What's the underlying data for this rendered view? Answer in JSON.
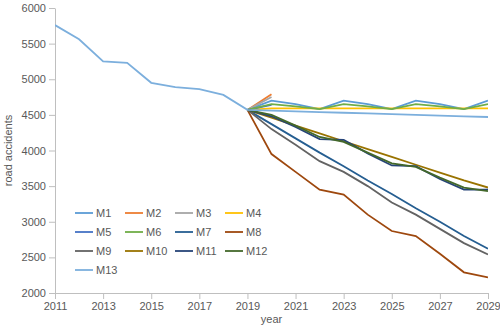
{
  "chart_data": {
    "type": "line",
    "x_label": "year",
    "y_label": "road accidents",
    "x": [
      2011,
      2012,
      2013,
      2014,
      2015,
      2016,
      2017,
      2018,
      2019,
      2020,
      2021,
      2022,
      2023,
      2024,
      2025,
      2026,
      2027,
      2028,
      2029
    ],
    "xlim": [
      2011,
      2029
    ],
    "xticks": [
      2011,
      2013,
      2015,
      2017,
      2019,
      2021,
      2023,
      2025,
      2027,
      2029
    ],
    "ylim": [
      2000,
      6000
    ],
    "yticks": [
      2000,
      2500,
      3000,
      3500,
      4000,
      4500,
      5000,
      5500,
      6000
    ],
    "grid": false,
    "legend": "lower left",
    "series": [
      {
        "name": "M1",
        "color": "#5b9bd5",
        "values": [
          null,
          null,
          null,
          null,
          null,
          null,
          null,
          null,
          4570,
          4700,
          4650,
          4580,
          4700,
          4650,
          4580,
          4700,
          4650,
          4580,
          4700
        ]
      },
      {
        "name": "M2",
        "color": "#ed7d31",
        "values": [
          null,
          null,
          null,
          null,
          null,
          null,
          null,
          null,
          4570,
          4790,
          null,
          null,
          null,
          null,
          null,
          null,
          null,
          null,
          null
        ]
      },
      {
        "name": "M3",
        "color": "#a5a5a5",
        "values": [
          null,
          null,
          null,
          null,
          null,
          null,
          null,
          null,
          4570,
          4750,
          null,
          null,
          null,
          null,
          null,
          null,
          null,
          null,
          null
        ]
      },
      {
        "name": "M4",
        "color": "#ffc000",
        "values": [
          null,
          null,
          null,
          null,
          null,
          null,
          null,
          null,
          4570,
          4590,
          4590,
          4590,
          4590,
          4590,
          4590,
          4590,
          4590,
          4590,
          4590
        ]
      },
      {
        "name": "M5",
        "color": "#4472c4",
        "values": [
          null,
          null,
          null,
          null,
          null,
          null,
          null,
          null,
          4570,
          4640,
          null,
          null,
          null,
          null,
          null,
          null,
          null,
          null,
          null
        ]
      },
      {
        "name": "M6",
        "color": "#70ad47",
        "values": [
          null,
          null,
          null,
          null,
          null,
          null,
          null,
          null,
          4570,
          4650,
          4620,
          4580,
          4650,
          4620,
          4580,
          4650,
          4620,
          4580,
          4650
        ]
      },
      {
        "name": "M7",
        "color": "#255e91",
        "values": [
          null,
          null,
          null,
          null,
          null,
          null,
          null,
          null,
          4570,
          4370,
          4170,
          3970,
          3780,
          3580,
          3390,
          3190,
          3000,
          2800,
          2620
        ]
      },
      {
        "name": "M8",
        "color": "#9e480e",
        "values": [
          null,
          null,
          null,
          null,
          null,
          null,
          null,
          null,
          4570,
          3950,
          3700,
          3450,
          3380,
          3100,
          2870,
          2800,
          2550,
          2290,
          2220
        ]
      },
      {
        "name": "M9",
        "color": "#636363",
        "values": [
          null,
          null,
          null,
          null,
          null,
          null,
          null,
          null,
          4570,
          4300,
          4080,
          3850,
          3700,
          3500,
          3270,
          3100,
          2900,
          2700,
          2540
        ]
      },
      {
        "name": "M10",
        "color": "#997300",
        "values": [
          null,
          null,
          null,
          null,
          null,
          null,
          null,
          null,
          4570,
          4460,
          4350,
          4240,
          4130,
          4020,
          3910,
          3800,
          3690,
          3580,
          3480
        ]
      },
      {
        "name": "M11",
        "color": "#264478",
        "values": [
          null,
          null,
          null,
          null,
          null,
          null,
          null,
          null,
          4570,
          4480,
          4330,
          4160,
          4150,
          3960,
          3790,
          3780,
          3600,
          3450,
          3450
        ]
      },
      {
        "name": "M12",
        "color": "#43682b",
        "values": [
          null,
          null,
          null,
          null,
          null,
          null,
          null,
          null,
          4570,
          4500,
          4350,
          4190,
          4120,
          3970,
          3820,
          3770,
          3620,
          3480,
          3430
        ]
      },
      {
        "name": "M13",
        "color": "#7cafdd",
        "values": [
          5760,
          5560,
          5250,
          5230,
          4950,
          4890,
          4860,
          4780,
          4570,
          4560,
          4550,
          4540,
          4530,
          4520,
          4510,
          4500,
          4490,
          4480,
          4470
        ]
      }
    ]
  }
}
